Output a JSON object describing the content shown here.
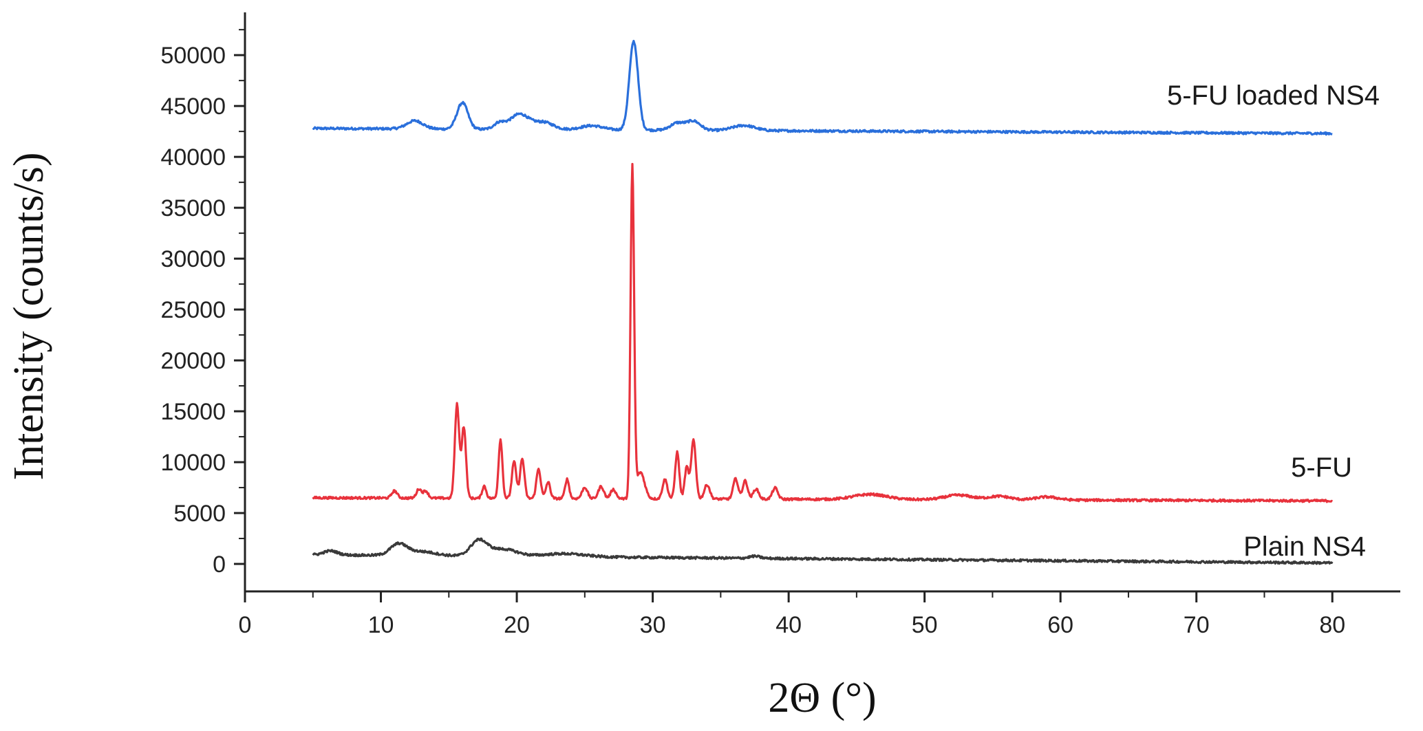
{
  "chart_data": {
    "type": "line",
    "title": "",
    "xlabel": "2Θ (°)",
    "ylabel": "Intensity (counts/s)",
    "xlim": [
      0,
      85
    ],
    "ylim": [
      -2700,
      54200
    ],
    "x_ticks": [
      0,
      10,
      20,
      30,
      40,
      50,
      60,
      70,
      80
    ],
    "x_tick_labels": [
      "0",
      "10",
      "20",
      "30",
      "40",
      "50",
      "60",
      "70",
      "80"
    ],
    "y_ticks": [
      0,
      5000,
      10000,
      15000,
      20000,
      25000,
      30000,
      35000,
      40000,
      45000,
      50000
    ],
    "y_tick_labels": [
      "0",
      "5000",
      "10000",
      "15000",
      "20000",
      "25000",
      "30000",
      "35000",
      "40000",
      "45000",
      "50000"
    ],
    "grid": false,
    "legend": "none (series labels placed at right end of each trace)",
    "series": [
      {
        "name": "5-FU loaded NS4",
        "color": "#2a6fdb",
        "x_start": 5,
        "x_end": 80,
        "baseline_start": 42800,
        "baseline_end": 42300,
        "peaks": [
          {
            "x": 12.5,
            "height": 800,
            "width": 0.6
          },
          {
            "x": 16.0,
            "height": 2600,
            "width": 0.4
          },
          {
            "x": 18.7,
            "height": 600,
            "width": 0.4
          },
          {
            "x": 20.2,
            "height": 1500,
            "width": 0.7
          },
          {
            "x": 22.0,
            "height": 700,
            "width": 0.7
          },
          {
            "x": 25.5,
            "height": 400,
            "width": 0.8
          },
          {
            "x": 28.6,
            "height": 8700,
            "width": 0.32
          },
          {
            "x": 31.8,
            "height": 700,
            "width": 0.5
          },
          {
            "x": 33.0,
            "height": 900,
            "width": 0.5
          },
          {
            "x": 36.7,
            "height": 500,
            "width": 0.8
          }
        ]
      },
      {
        "name": "5-FU",
        "color": "#e8323c",
        "x_start": 5,
        "x_end": 80,
        "baseline_start": 6500,
        "baseline_end": 6200,
        "peaks": [
          {
            "x": 11.0,
            "height": 700,
            "width": 0.2
          },
          {
            "x": 12.8,
            "height": 900,
            "width": 0.18
          },
          {
            "x": 13.3,
            "height": 700,
            "width": 0.18
          },
          {
            "x": 15.6,
            "height": 9200,
            "width": 0.16
          },
          {
            "x": 16.1,
            "height": 7000,
            "width": 0.16
          },
          {
            "x": 17.6,
            "height": 1200,
            "width": 0.15
          },
          {
            "x": 18.8,
            "height": 5800,
            "width": 0.14
          },
          {
            "x": 19.8,
            "height": 3600,
            "width": 0.16
          },
          {
            "x": 20.4,
            "height": 3900,
            "width": 0.16
          },
          {
            "x": 21.6,
            "height": 2900,
            "width": 0.16
          },
          {
            "x": 22.3,
            "height": 1600,
            "width": 0.16
          },
          {
            "x": 23.7,
            "height": 1900,
            "width": 0.15
          },
          {
            "x": 25.0,
            "height": 1100,
            "width": 0.2
          },
          {
            "x": 26.2,
            "height": 1200,
            "width": 0.2
          },
          {
            "x": 27.1,
            "height": 900,
            "width": 0.2
          },
          {
            "x": 28.5,
            "height": 32500,
            "width": 0.13
          },
          {
            "x": 29.1,
            "height": 2600,
            "width": 0.3
          },
          {
            "x": 30.9,
            "height": 1900,
            "width": 0.18
          },
          {
            "x": 31.8,
            "height": 4600,
            "width": 0.15
          },
          {
            "x": 32.5,
            "height": 3100,
            "width": 0.15
          },
          {
            "x": 33.0,
            "height": 5800,
            "width": 0.17
          },
          {
            "x": 34.0,
            "height": 1400,
            "width": 0.2
          },
          {
            "x": 36.1,
            "height": 2000,
            "width": 0.18
          },
          {
            "x": 36.8,
            "height": 1800,
            "width": 0.18
          },
          {
            "x": 37.6,
            "height": 1000,
            "width": 0.2
          },
          {
            "x": 39.0,
            "height": 1100,
            "width": 0.2
          },
          {
            "x": 46.0,
            "height": 500,
            "width": 1.2
          },
          {
            "x": 52.5,
            "height": 450,
            "width": 1.0
          },
          {
            "x": 55.5,
            "height": 350,
            "width": 0.8
          },
          {
            "x": 59.0,
            "height": 300,
            "width": 0.8
          }
        ]
      },
      {
        "name": "Plain NS4",
        "color": "#3a3a3a",
        "x_start": 5,
        "x_end": 80,
        "baseline_start": 900,
        "baseline_end": 100,
        "peaks": [
          {
            "x": 6.3,
            "height": 400,
            "width": 0.5
          },
          {
            "x": 11.3,
            "height": 1100,
            "width": 0.6
          },
          {
            "x": 13.0,
            "height": 400,
            "width": 1.0
          },
          {
            "x": 17.2,
            "height": 1500,
            "width": 0.6
          },
          {
            "x": 19.0,
            "height": 700,
            "width": 1.0
          },
          {
            "x": 23.5,
            "height": 300,
            "width": 1.5
          },
          {
            "x": 37.5,
            "height": 200,
            "width": 0.4
          }
        ]
      }
    ]
  }
}
